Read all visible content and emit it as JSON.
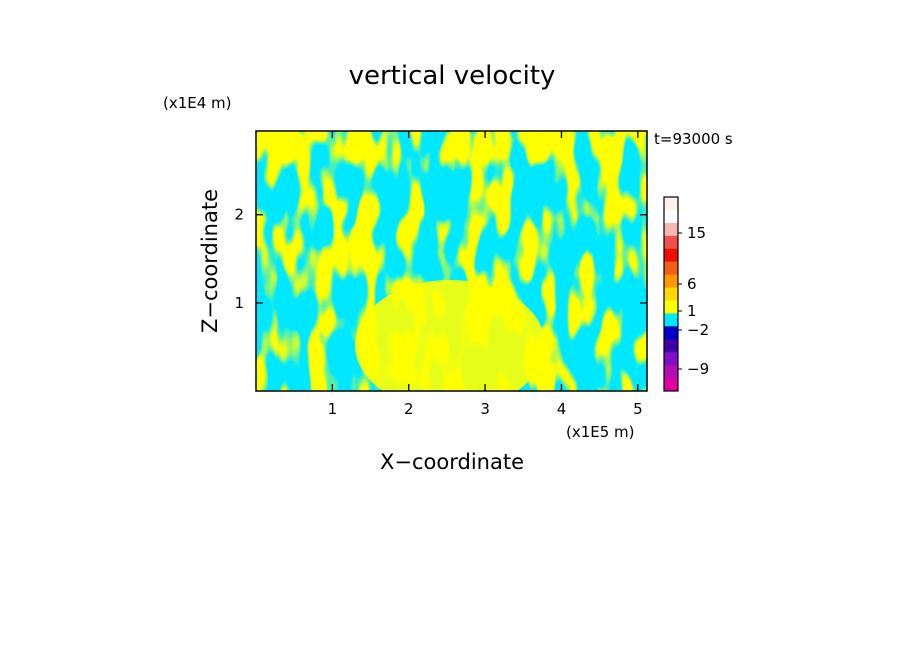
{
  "chart_data": {
    "type": "heatmap",
    "title": "vertical velocity",
    "xlabel": "X−coordinate",
    "ylabel": "Z−coordinate",
    "x_scale_label": "(x1E5 m)",
    "y_scale_label": "(x1E4 m)",
    "time_label": "t=93000 s",
    "xlim": [
      0,
      5.12
    ],
    "ylim": [
      0,
      2.95
    ],
    "x_ticks": [
      1,
      2,
      3,
      4,
      5
    ],
    "y_ticks": [
      1,
      2
    ],
    "x_tick_labels": [
      "1",
      "2",
      "3",
      "4",
      "5"
    ],
    "y_tick_labels": [
      "1",
      "2"
    ],
    "dominant_field_colors": [
      "#00e8ff",
      "#ffff00"
    ],
    "colorbar": {
      "tick_labels": [
        "15",
        "6",
        "1",
        "−2",
        "−9"
      ],
      "tick_values": [
        15,
        6,
        1,
        -2,
        -9
      ],
      "levels": [
        {
          "color": "#fff0e8"
        },
        {
          "color": "#ffffff"
        },
        {
          "color": "#f4b8b4"
        },
        {
          "color": "#f05050"
        },
        {
          "color": "#ee1100"
        },
        {
          "color": "#f06018"
        },
        {
          "color": "#ff9800"
        },
        {
          "color": "#ffd800"
        },
        {
          "color": "#ffff00"
        },
        {
          "color": "#00e8ff"
        },
        {
          "color": "#0000c8"
        },
        {
          "color": "#4000a8"
        },
        {
          "color": "#8010c8"
        },
        {
          "color": "#b010b0"
        },
        {
          "color": "#e000a0"
        }
      ]
    }
  }
}
